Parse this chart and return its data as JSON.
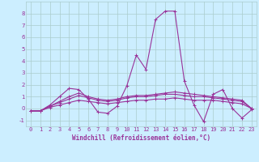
{
  "xlabel": "Windchill (Refroidissement éolien,°C)",
  "bg_color": "#cceeff",
  "grid_color": "#aacccc",
  "line_color": "#993399",
  "x_values": [
    0,
    1,
    2,
    3,
    4,
    5,
    6,
    7,
    8,
    9,
    10,
    11,
    12,
    13,
    14,
    15,
    16,
    17,
    18,
    19,
    20,
    21,
    22,
    23
  ],
  "series": [
    [
      -0.2,
      -0.2,
      0.3,
      1.0,
      1.7,
      1.6,
      0.8,
      -0.3,
      -0.4,
      0.2,
      1.9,
      4.5,
      3.3,
      7.5,
      8.2,
      8.2,
      2.3,
      0.3,
      -1.1,
      1.2,
      1.6,
      0.0,
      -0.8,
      -0.1
    ],
    [
      -0.2,
      -0.2,
      0.2,
      0.6,
      1.0,
      1.3,
      1.0,
      0.8,
      0.7,
      0.8,
      1.0,
      1.1,
      1.1,
      1.2,
      1.3,
      1.4,
      1.3,
      1.2,
      1.1,
      1.0,
      0.9,
      0.8,
      0.7,
      0.0
    ],
    [
      -0.2,
      -0.2,
      0.2,
      0.5,
      0.8,
      1.1,
      0.9,
      0.7,
      0.6,
      0.7,
      0.9,
      1.0,
      1.0,
      1.1,
      1.2,
      1.2,
      1.1,
      1.0,
      1.0,
      0.9,
      0.8,
      0.7,
      0.6,
      0.0
    ],
    [
      -0.2,
      -0.2,
      0.1,
      0.3,
      0.5,
      0.7,
      0.6,
      0.5,
      0.4,
      0.5,
      0.6,
      0.7,
      0.7,
      0.8,
      0.8,
      0.9,
      0.8,
      0.7,
      0.7,
      0.7,
      0.6,
      0.5,
      0.4,
      0.0
    ]
  ],
  "ylim": [
    -1.5,
    9.0
  ],
  "yticks": [
    -1,
    0,
    1,
    2,
    3,
    4,
    5,
    6,
    7,
    8
  ],
  "xticks": [
    0,
    1,
    2,
    3,
    4,
    5,
    6,
    7,
    8,
    9,
    10,
    11,
    12,
    13,
    14,
    15,
    16,
    17,
    18,
    19,
    20,
    21,
    22,
    23
  ],
  "tick_fontsize": 5.0,
  "xlabel_fontsize": 5.5,
  "linewidth": 0.8,
  "markersize": 3.0
}
